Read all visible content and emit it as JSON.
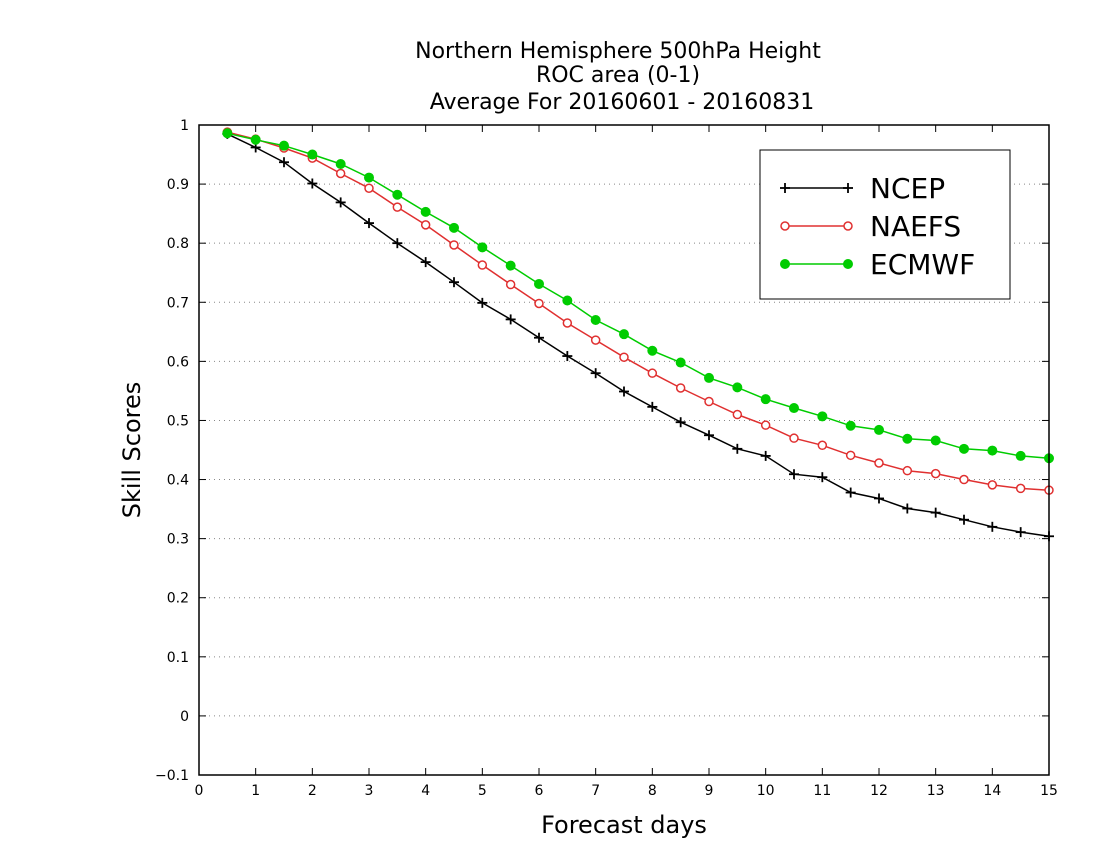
{
  "chart_data": {
    "type": "line",
    "title": [
      "Northern Hemisphere 500hPa Height",
      "ROC area (0-1)",
      "Average For 20160601 - 20160831"
    ],
    "xlabel": "Forecast days",
    "ylabel": "Skill Scores",
    "xlim": [
      0,
      15
    ],
    "ylim": [
      -0.1,
      1
    ],
    "x_ticks": [
      "0",
      "1",
      "2",
      "3",
      "4",
      "5",
      "6",
      "7",
      "8",
      "9",
      "10",
      "11",
      "12",
      "13",
      "14",
      "15"
    ],
    "y_ticks": [
      "−0.1",
      "0",
      "0.1",
      "0.2",
      "0.3",
      "0.4",
      "0.5",
      "0.6",
      "0.7",
      "0.8",
      "0.9",
      "1"
    ],
    "grid": "horizontal dotted",
    "legend_position": "top-right",
    "x": [
      0.5,
      1,
      1.5,
      2,
      2.5,
      3,
      3.5,
      4,
      4.5,
      5,
      5.5,
      6,
      6.5,
      7,
      7.5,
      8,
      8.5,
      9,
      9.5,
      10,
      10.5,
      11,
      11.5,
      12,
      12.5,
      13,
      13.5,
      14,
      14.5,
      15
    ],
    "series": [
      {
        "name": "NCEP",
        "color": "#000000",
        "marker": "plus",
        "values": [
          0.985,
          0.962,
          0.937,
          0.901,
          0.869,
          0.834,
          0.8,
          0.768,
          0.734,
          0.699,
          0.671,
          0.64,
          0.609,
          0.58,
          0.549,
          0.523,
          0.497,
          0.475,
          0.452,
          0.44,
          0.409,
          0.404,
          0.378,
          0.368,
          0.351,
          0.344,
          0.332,
          0.32,
          0.311,
          0.304
        ]
      },
      {
        "name": "NAEFS",
        "color": "#e03030",
        "marker": "open-circle",
        "values": [
          0.988,
          0.976,
          0.961,
          0.944,
          0.918,
          0.893,
          0.861,
          0.831,
          0.797,
          0.763,
          0.73,
          0.698,
          0.665,
          0.636,
          0.607,
          0.58,
          0.555,
          0.532,
          0.51,
          0.492,
          0.47,
          0.458,
          0.441,
          0.428,
          0.415,
          0.41,
          0.4,
          0.391,
          0.385,
          0.382
        ]
      },
      {
        "name": "ECMWF",
        "color": "#00cc00",
        "marker": "filled-circle",
        "values": [
          0.986,
          0.975,
          0.965,
          0.95,
          0.934,
          0.911,
          0.882,
          0.853,
          0.826,
          0.793,
          0.762,
          0.731,
          0.703,
          0.67,
          0.646,
          0.618,
          0.598,
          0.572,
          0.556,
          0.536,
          0.521,
          0.507,
          0.491,
          0.484,
          0.469,
          0.466,
          0.452,
          0.449,
          0.44,
          0.436
        ]
      }
    ]
  }
}
